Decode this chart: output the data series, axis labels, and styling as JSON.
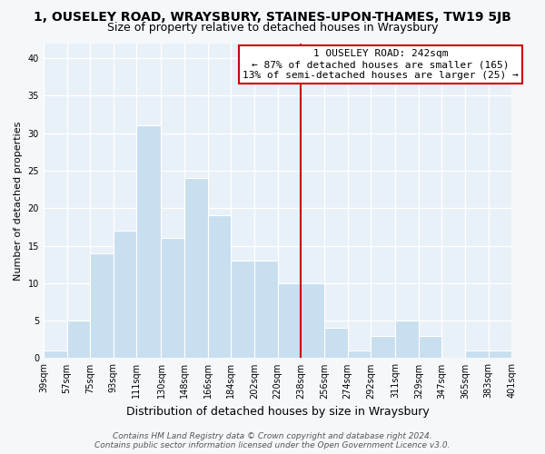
{
  "title": "1, OUSELEY ROAD, WRAYSBURY, STAINES-UPON-THAMES, TW19 5JB",
  "subtitle": "Size of property relative to detached houses in Wraysbury",
  "xlabel": "Distribution of detached houses by size in Wraysbury",
  "ylabel": "Number of detached properties",
  "bin_edges": [
    39,
    57,
    75,
    93,
    111,
    130,
    148,
    166,
    184,
    202,
    220,
    238,
    256,
    274,
    292,
    311,
    329,
    347,
    365,
    383,
    401
  ],
  "bin_labels": [
    "39sqm",
    "57sqm",
    "75sqm",
    "93sqm",
    "111sqm",
    "130sqm",
    "148sqm",
    "166sqm",
    "184sqm",
    "202sqm",
    "220sqm",
    "238sqm",
    "256sqm",
    "274sqm",
    "292sqm",
    "311sqm",
    "329sqm",
    "347sqm",
    "365sqm",
    "383sqm",
    "401sqm"
  ],
  "counts": [
    1,
    5,
    14,
    17,
    31,
    16,
    24,
    19,
    13,
    13,
    10,
    10,
    4,
    1,
    3,
    5,
    3,
    0,
    1,
    1
  ],
  "bar_color": "#c8dff0",
  "bar_edge_color": "#ffffff",
  "vline_color": "#cc0000",
  "annotation_title": "1 OUSELEY ROAD: 242sqm",
  "annotation_line1": "← 87% of detached houses are smaller (165)",
  "annotation_line2": "13% of semi-detached houses are larger (25) →",
  "annotation_box_edge": "#cc0000",
  "ylim": [
    0,
    42
  ],
  "yticks": [
    0,
    5,
    10,
    15,
    20,
    25,
    30,
    35,
    40
  ],
  "footer1": "Contains HM Land Registry data © Crown copyright and database right 2024.",
  "footer2": "Contains public sector information licensed under the Open Government Licence v3.0.",
  "background_color": "#f5f8fb",
  "plot_background": "#e8f0f8",
  "grid_color": "#ffffff",
  "title_fontsize": 10,
  "subtitle_fontsize": 9,
  "xlabel_fontsize": 9,
  "ylabel_fontsize": 8,
  "tick_fontsize": 7,
  "annotation_fontsize": 8,
  "footer_fontsize": 6.5
}
